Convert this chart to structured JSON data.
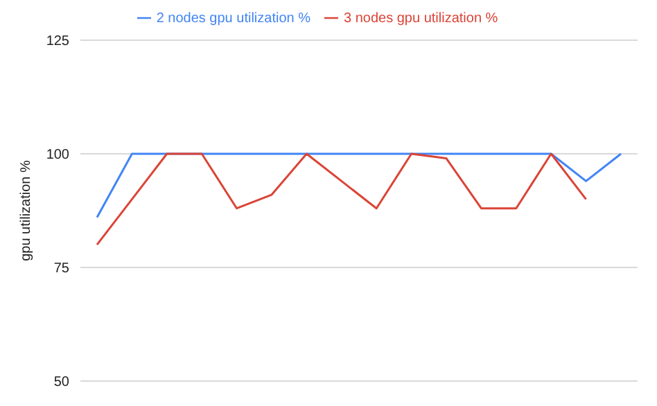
{
  "chart_data": {
    "type": "line",
    "ylabel": "gpu utilization %",
    "categories": [
      null,
      null,
      null,
      null,
      null,
      null,
      null,
      null,
      null,
      null,
      null,
      null,
      null,
      null,
      null,
      null
    ],
    "series": [
      {
        "name": "2 nodes gpu utilization %",
        "color": "#4285f4",
        "values": [
          86,
          100,
          100,
          100,
          100,
          100,
          100,
          100,
          100,
          100,
          100,
          100,
          100,
          100,
          94,
          100
        ]
      },
      {
        "name": "3 nodes gpu utilization %",
        "color": "#db4437",
        "values": [
          80,
          90,
          100,
          100,
          88,
          91,
          100,
          94,
          88,
          100,
          99,
          88,
          88,
          100,
          90,
          null
        ]
      }
    ],
    "ylim": [
      50,
      125
    ],
    "yticks": [
      50,
      75,
      100,
      125
    ],
    "grid": "y",
    "legend": "top",
    "marker": "none",
    "line_style": "solid",
    "tick_labels": "y"
  }
}
